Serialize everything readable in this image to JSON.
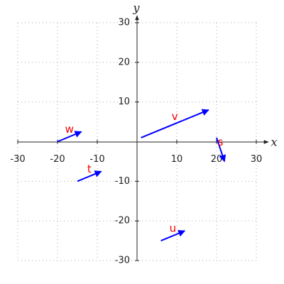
{
  "chart_data": {
    "type": "quiver",
    "x_label": "x",
    "y_label": "y",
    "xlim": [
      -30,
      30
    ],
    "ylim": [
      -30,
      30
    ],
    "xticks": [
      -30,
      -20,
      -10,
      10,
      20,
      30
    ],
    "yticks": [
      -30,
      -20,
      -10,
      10,
      20,
      30
    ],
    "grid": true,
    "color": "#0000ff",
    "label_color": "#ee0000",
    "series": [
      {
        "name": "v",
        "start": [
          1,
          1
        ],
        "end": [
          18,
          8
        ]
      },
      {
        "name": "w",
        "start": [
          -20,
          0
        ],
        "end": [
          -14,
          2.5
        ]
      },
      {
        "name": "s",
        "start": [
          20,
          1
        ],
        "end": [
          22,
          -5
        ]
      },
      {
        "name": "t",
        "start": [
          -15,
          -10
        ],
        "end": [
          -9,
          -7.5
        ]
      },
      {
        "name": "u",
        "start": [
          6,
          -25
        ],
        "end": [
          12,
          -22.5
        ]
      }
    ]
  }
}
